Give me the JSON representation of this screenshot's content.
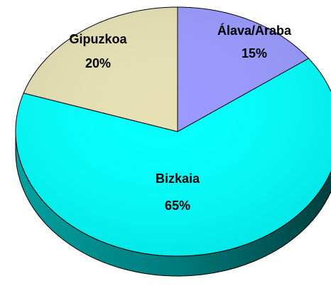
{
  "chart_data": {
    "type": "pie",
    "categories": [
      "Álava/Araba",
      "Bizkaia",
      "Gipuzkoa"
    ],
    "values": [
      15,
      65,
      20
    ],
    "value_labels": [
      "15%",
      "65%",
      "20%"
    ],
    "colors": [
      "#9999ff",
      "#00ffff",
      "#e6e0b4"
    ]
  }
}
